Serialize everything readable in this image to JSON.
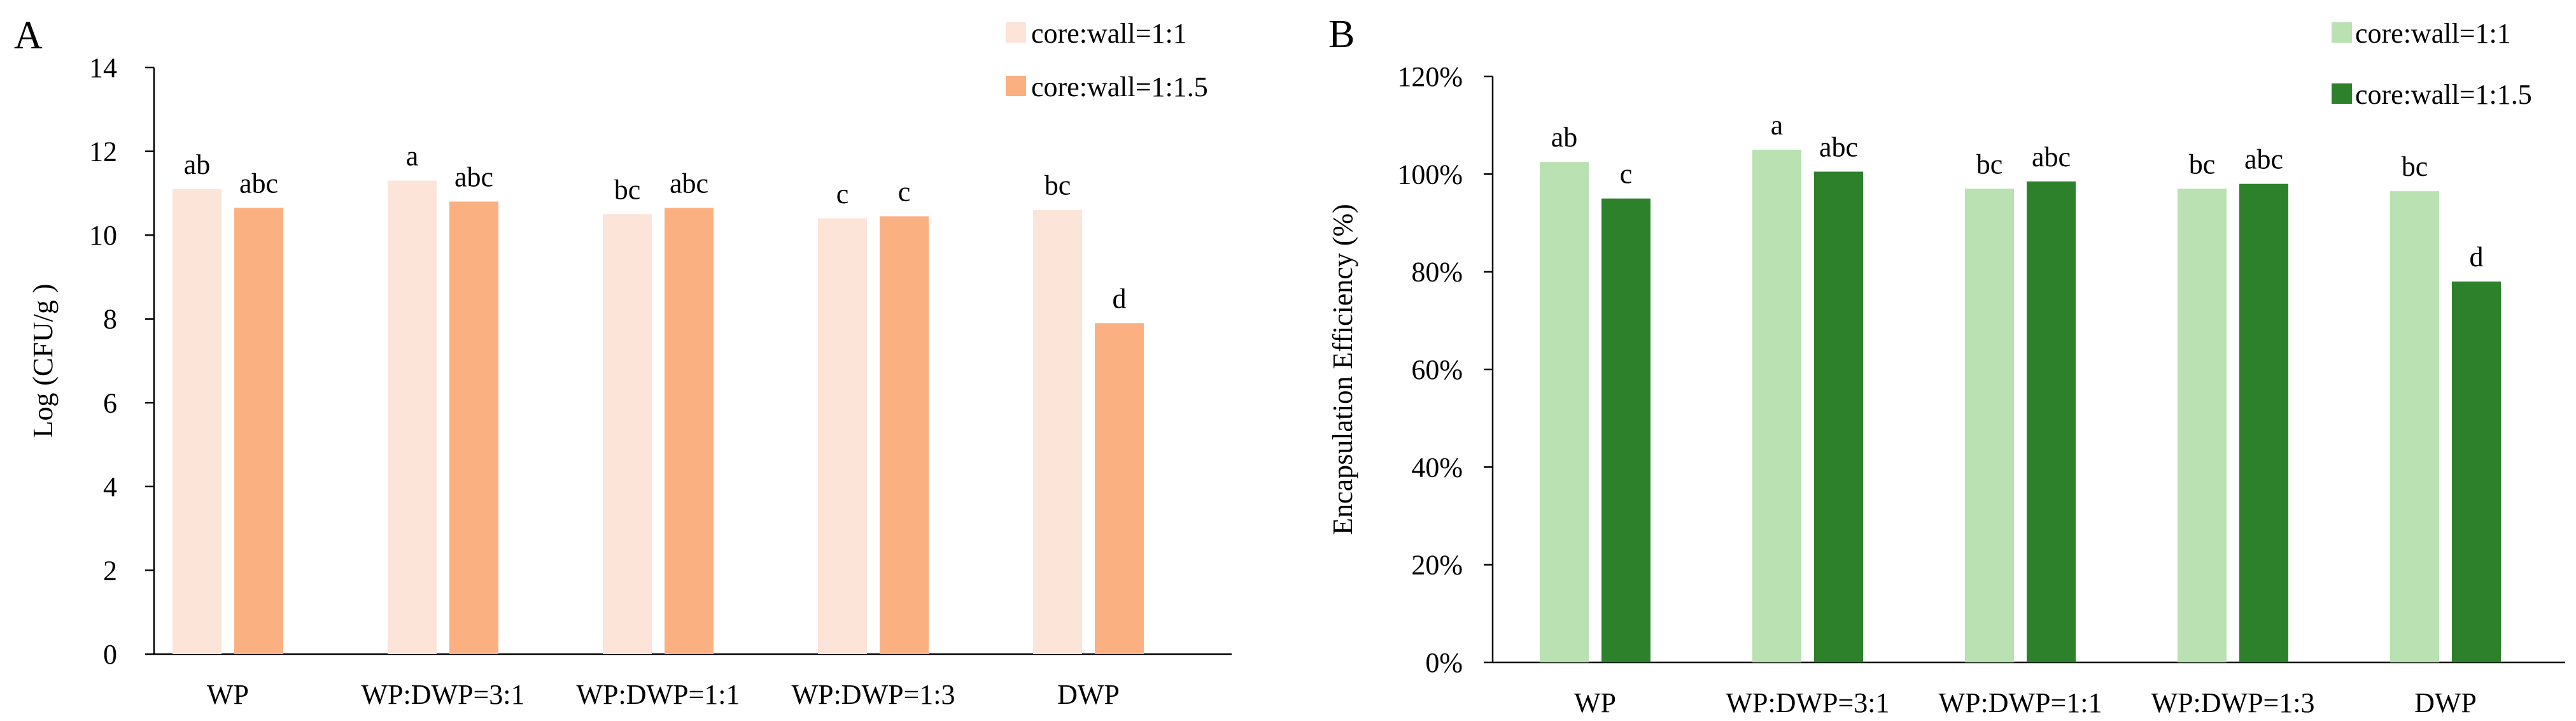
{
  "figure": {
    "panels": [
      {
        "panel_label": "A",
        "legend_position": "top-right"
      },
      {
        "panel_label": "B",
        "legend_position": "top-right"
      }
    ]
  },
  "chart_data": [
    {
      "type": "bar",
      "panel": "A",
      "title": "",
      "xlabel": "",
      "ylabel": "Log (CFU/g )",
      "ylim": [
        0,
        14
      ],
      "yticks": [
        0,
        2,
        4,
        6,
        8,
        10,
        12,
        14
      ],
      "ytick_labels": [
        "0",
        "2",
        "4",
        "6",
        "8",
        "10",
        "12",
        "14"
      ],
      "grid": false,
      "categories": [
        "WP",
        "WP:DWP=3:1",
        "WP:DWP=1:1",
        "WP:DWP=1:3",
        "DWP"
      ],
      "series": [
        {
          "name": "core:wall=1:1",
          "color": "#fde4d8",
          "values": [
            11.1,
            11.3,
            10.5,
            10.4,
            10.6
          ],
          "letters": [
            "ab",
            "a",
            "bc",
            "c",
            "bc"
          ]
        },
        {
          "name": "core:wall=1:1.5",
          "color": "#fbb082",
          "values": [
            10.65,
            10.8,
            10.65,
            10.45,
            7.9
          ],
          "letters": [
            "abc",
            "abc",
            "abc",
            "c",
            "d"
          ]
        }
      ]
    },
    {
      "type": "bar",
      "panel": "B",
      "title": "",
      "xlabel": "",
      "ylabel": "Encapsulation Efficiency (%)",
      "ylim": [
        0,
        120
      ],
      "yticks": [
        0,
        20,
        40,
        60,
        80,
        100,
        120
      ],
      "ytick_labels": [
        "0%",
        "20%",
        "40%",
        "60%",
        "80%",
        "100%",
        "120%"
      ],
      "grid": false,
      "categories": [
        "WP",
        "WP:DWP=3:1",
        "WP:DWP=1:1",
        "WP:DWP=1:3",
        "DWP"
      ],
      "series": [
        {
          "name": "core:wall=1:1",
          "color": "#b9e1b1",
          "values": [
            102.5,
            105,
            97,
            97,
            96.5
          ],
          "letters": [
            "ab",
            "a",
            "bc",
            "bc",
            "bc"
          ]
        },
        {
          "name": "core:wall=1:1.5",
          "color": "#2e812b",
          "values": [
            95,
            100.5,
            98.5,
            98,
            78
          ],
          "letters": [
            "c",
            "abc",
            "abc",
            "abc",
            "d"
          ]
        }
      ]
    }
  ]
}
